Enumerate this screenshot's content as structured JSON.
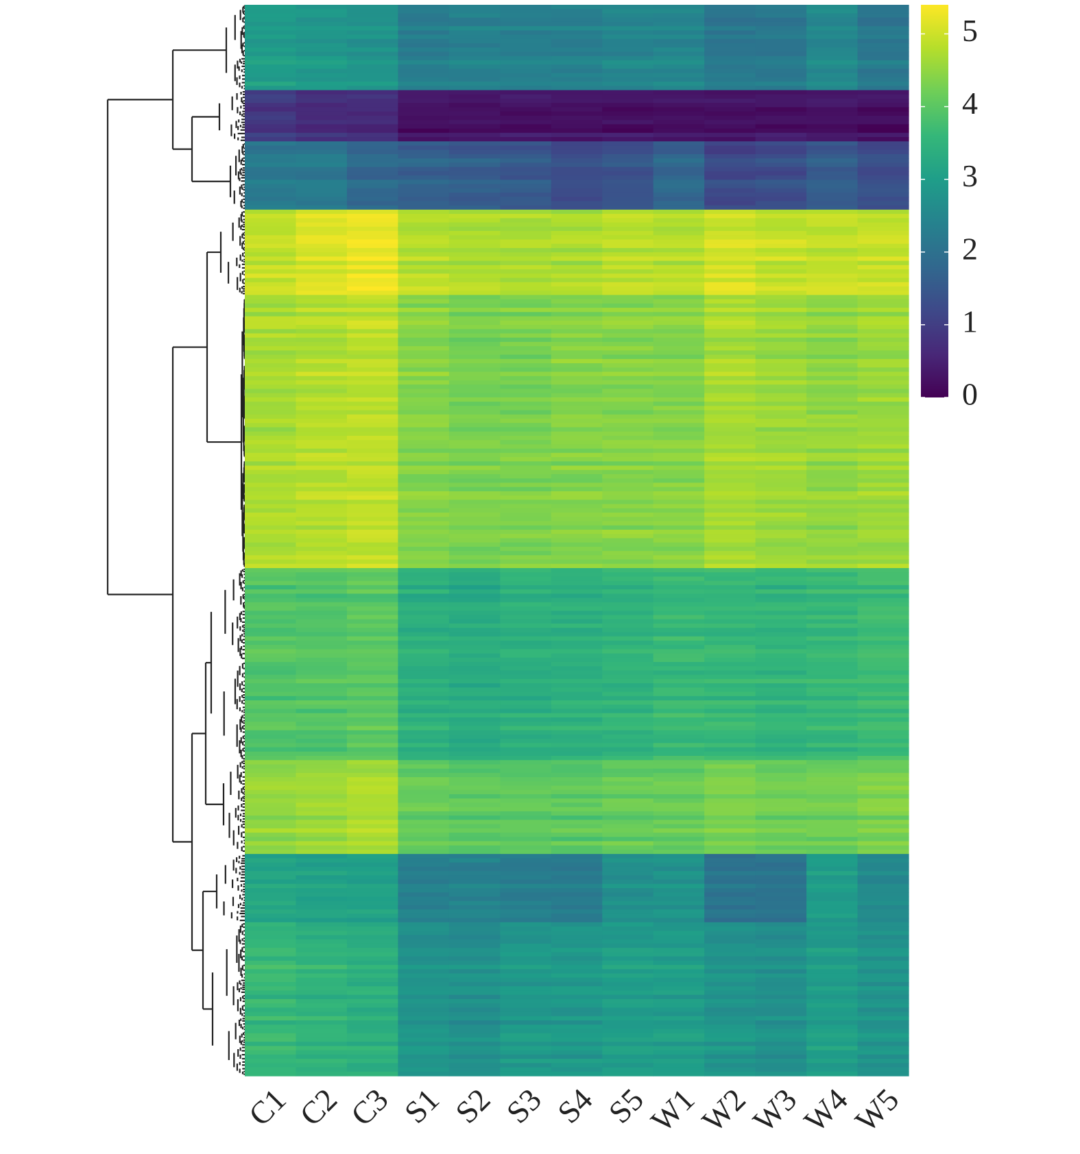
{
  "chart_data": {
    "type": "heatmap",
    "title": "",
    "xlabel": "",
    "ylabel": "",
    "columns": [
      "C1",
      "C2",
      "C3",
      "S1",
      "S2",
      "S3",
      "S4",
      "S5",
      "W1",
      "W2",
      "W3",
      "W4",
      "W5"
    ],
    "colorscale": {
      "name": "viridis",
      "range": [
        0,
        5.4
      ],
      "ticks": [
        "0",
        "1",
        "2",
        "3",
        "4",
        "5"
      ],
      "stops": [
        "#440154",
        "#482878",
        "#3e4989",
        "#31688e",
        "#26828e",
        "#1f9e89",
        "#35b779",
        "#6ece58",
        "#b5de2b",
        "#fde725"
      ]
    },
    "row_clusters": [
      {
        "id": "A",
        "rows": 20,
        "values": [
          3.0,
          2.9,
          2.8,
          2.3,
          2.4,
          2.4,
          2.4,
          2.5,
          2.5,
          2.2,
          2.2,
          2.6,
          2.2
        ]
      },
      {
        "id": "B",
        "rows": 12,
        "values": [
          0.9,
          0.7,
          0.7,
          0.3,
          0.3,
          0.3,
          0.3,
          0.3,
          0.3,
          0.3,
          0.3,
          0.3,
          0.2
        ]
      },
      {
        "id": "C",
        "rows": 16,
        "values": [
          2.2,
          2.2,
          1.8,
          1.7,
          1.6,
          1.5,
          1.3,
          1.4,
          1.8,
          1.2,
          1.3,
          1.6,
          1.3
        ]
      },
      {
        "id": "D",
        "rows": 20,
        "values": [
          4.9,
          5.1,
          5.2,
          4.8,
          4.7,
          4.7,
          4.7,
          4.8,
          4.8,
          5.0,
          4.9,
          4.9,
          4.9
        ]
      },
      {
        "id": "E",
        "rows": 64,
        "values": [
          4.7,
          4.8,
          4.9,
          4.4,
          4.3,
          4.3,
          4.4,
          4.4,
          4.4,
          4.7,
          4.6,
          4.5,
          4.6
        ]
      },
      {
        "id": "F",
        "rows": 45,
        "values": [
          3.9,
          3.9,
          4.0,
          3.4,
          3.3,
          3.4,
          3.4,
          3.5,
          3.6,
          3.6,
          3.5,
          3.6,
          3.7
        ]
      },
      {
        "id": "G",
        "rows": 22,
        "values": [
          4.5,
          4.6,
          4.7,
          4.1,
          4.0,
          4.0,
          4.0,
          4.1,
          4.1,
          4.3,
          4.2,
          4.2,
          4.3
        ]
      },
      {
        "id": "H",
        "rows": 16,
        "values": [
          3.2,
          3.1,
          3.1,
          2.4,
          2.4,
          2.3,
          2.3,
          2.7,
          2.8,
          2.1,
          2.1,
          3.0,
          2.6
        ]
      },
      {
        "id": "I",
        "rows": 36,
        "values": [
          3.6,
          3.5,
          3.4,
          2.8,
          2.7,
          2.9,
          2.9,
          3.0,
          3.0,
          2.8,
          2.7,
          3.0,
          2.8
        ]
      }
    ]
  }
}
